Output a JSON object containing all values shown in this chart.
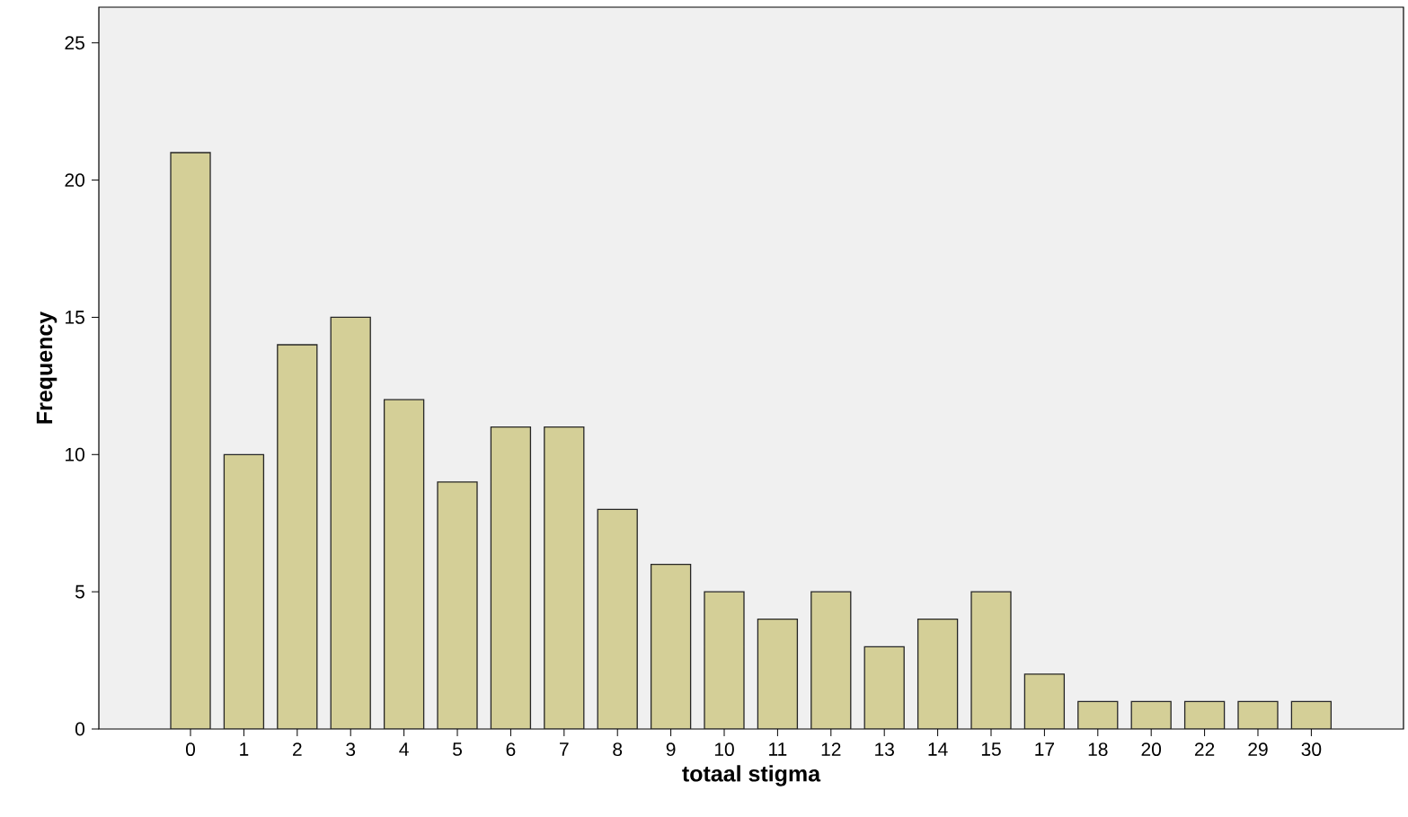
{
  "chart_data": {
    "type": "bar",
    "xlabel": "totaal stigma",
    "ylabel": "Frequency",
    "categories": [
      "0",
      "1",
      "2",
      "3",
      "4",
      "5",
      "6",
      "7",
      "8",
      "9",
      "10",
      "11",
      "12",
      "13",
      "14",
      "15",
      "17",
      "18",
      "20",
      "22",
      "29",
      "30"
    ],
    "values": [
      21,
      10,
      14,
      15,
      12,
      9,
      11,
      11,
      8,
      6,
      5,
      4,
      5,
      3,
      4,
      5,
      2,
      1,
      1,
      1,
      1,
      1
    ],
    "color": "#d4cf97",
    "ylim": [
      0,
      26.3
    ],
    "yticks": [
      0,
      5,
      10,
      15,
      20,
      25
    ],
    "grid": false
  }
}
